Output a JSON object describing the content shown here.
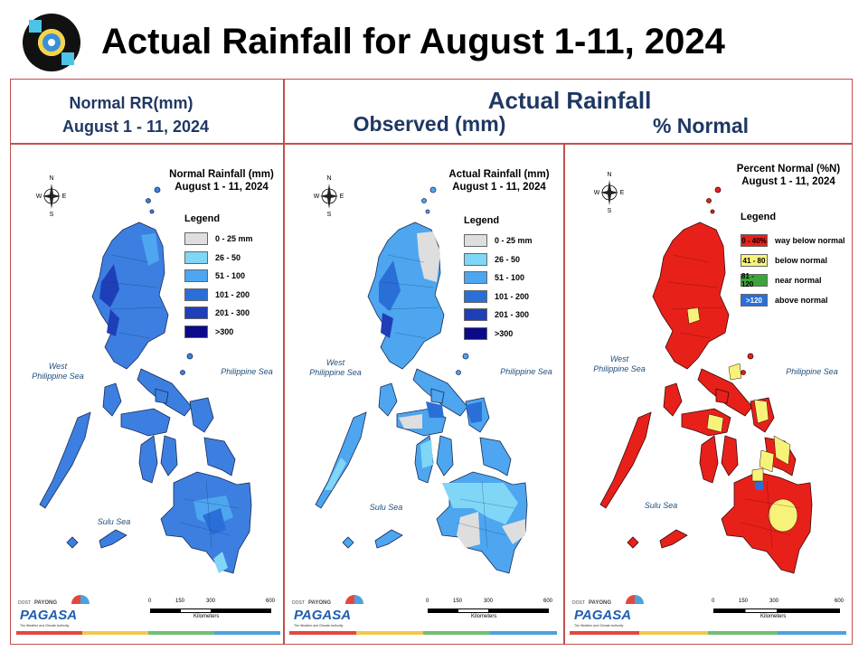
{
  "header": {
    "title": "Actual Rainfall for August 1-11, 2024"
  },
  "columns": {
    "normal_line1": "Normal RR(mm)",
    "normal_line2": "August 1 - 11, 2024",
    "actual_title": "Actual Rainfall",
    "observed": "Observed (mm)",
    "percent": "% Normal"
  },
  "panels": [
    {
      "title_line1": "Normal Rainfall (mm)",
      "title_line2": "August 1 - 11, 2024",
      "legend_title": "Legend",
      "legend": [
        {
          "label": "0 - 25 mm",
          "color": "#dedede"
        },
        {
          "label": "26 - 50",
          "color": "#7fd6f7"
        },
        {
          "label": "51 - 100",
          "color": "#4da6ef"
        },
        {
          "label": "101 - 200",
          "color": "#2a6fd8"
        },
        {
          "label": "201 - 300",
          "color": "#1f3fb8"
        },
        {
          "label": ">300",
          "color": "#0a0a8a"
        }
      ],
      "sea_west_1": "West",
      "sea_west_2": "Philippine Sea",
      "sea_east": "Philippine Sea",
      "sea_sulu": "Sulu Sea",
      "scale_ticks": [
        "0",
        "150",
        "300",
        "600"
      ],
      "scale_unit": "Kilometers"
    },
    {
      "title_line1": "Actual Rainfall (mm)",
      "title_line2": "August 1 - 11, 2024",
      "legend_title": "Legend",
      "legend": [
        {
          "label": "0 - 25 mm",
          "color": "#dedede"
        },
        {
          "label": "26 - 50",
          "color": "#7fd6f7"
        },
        {
          "label": "51 - 100",
          "color": "#4da6ef"
        },
        {
          "label": "101 - 200",
          "color": "#2a6fd8"
        },
        {
          "label": "201 - 300",
          "color": "#1f3fb8"
        },
        {
          "label": ">300",
          "color": "#0a0a8a"
        }
      ],
      "sea_west_1": "West",
      "sea_west_2": "Philippine Sea",
      "sea_east": "Philippine Sea",
      "sea_sulu": "Sulu Sea",
      "scale_ticks": [
        "0",
        "150",
        "300",
        "600"
      ],
      "scale_unit": "Kilometers"
    },
    {
      "title_line1": "Percent Normal (%N)",
      "title_line2": "August 1 - 11, 2024",
      "legend_title": "Legend",
      "legend": [
        {
          "swatch": "0 - 40%",
          "label": "way below normal",
          "color": "#e8201a",
          "text_color": "#000000"
        },
        {
          "swatch": "41 - 80",
          "label": "below normal",
          "color": "#f7f37a",
          "text_color": "#000000"
        },
        {
          "swatch": "81 - 120",
          "label": "near normal",
          "color": "#3aa63a",
          "text_color": "#000000"
        },
        {
          "swatch": ">120",
          "label": "above normal",
          "color": "#2a6fd8",
          "text_color": "#ffffff"
        }
      ],
      "sea_west_1": "West",
      "sea_west_2": "Philippine Sea",
      "sea_east": "Philippine Sea",
      "sea_sulu": "Sulu Sea",
      "scale_ticks": [
        "0",
        "150",
        "300",
        "600"
      ],
      "scale_unit": "Kilometers"
    }
  ],
  "compass": {
    "n": "N",
    "s": "S",
    "e": "E",
    "w": "W"
  },
  "brand": {
    "small": "DOST",
    "name1": "PAYONG",
    "name2": "PAGASA",
    "tagline": "The Weather and Climate Authority"
  },
  "stripe_colors": [
    "#e3483f",
    "#f2c94c",
    "#6fbf73",
    "#4aa3df"
  ]
}
